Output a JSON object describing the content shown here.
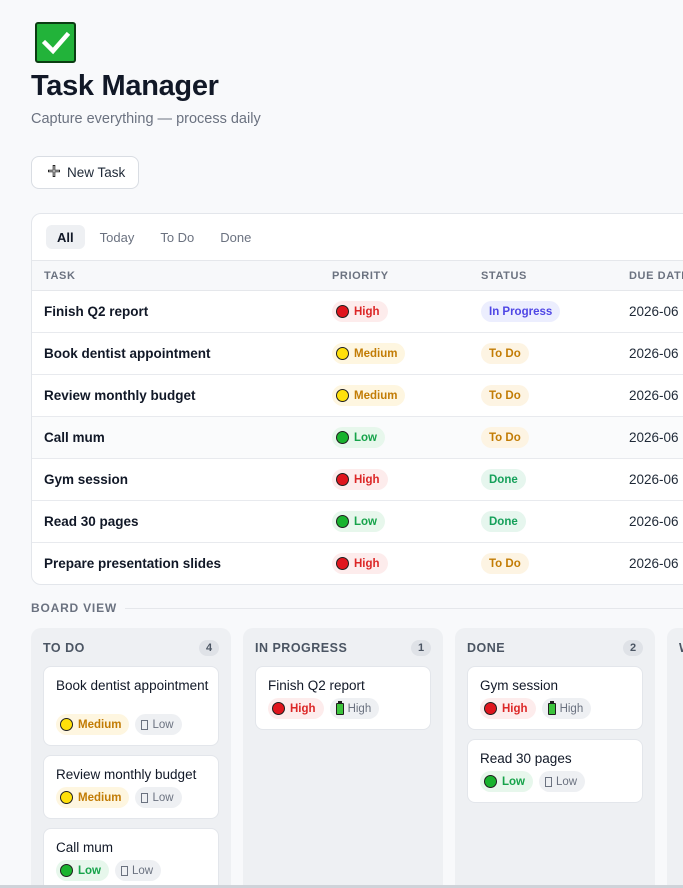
{
  "header": {
    "title": "Task Manager",
    "subtitle": "Capture everything — process daily",
    "icon": "check-mark-icon",
    "icon_color": "#22b33a"
  },
  "toolbar": {
    "new_task_label": "New Task",
    "new_task_icon": "plus-icon"
  },
  "filters": [
    {
      "label": "All",
      "active": true
    },
    {
      "label": "Today",
      "active": false
    },
    {
      "label": "To Do",
      "active": false
    },
    {
      "label": "Done",
      "active": false
    }
  ],
  "table": {
    "columns": [
      "Task",
      "Priority",
      "Status",
      "Due Date"
    ],
    "rows": [
      {
        "task": "Finish Q2 report",
        "priority": "High",
        "status": "In Progress",
        "due": "2026-06"
      },
      {
        "task": "Book dentist appointment",
        "priority": "Medium",
        "status": "To Do",
        "due": "2026-06"
      },
      {
        "task": "Review monthly budget",
        "priority": "Medium",
        "status": "To Do",
        "due": "2026-06"
      },
      {
        "task": "Call mum",
        "priority": "Low",
        "status": "To Do",
        "due": "2026-06"
      },
      {
        "task": "Gym session",
        "priority": "High",
        "status": "Done",
        "due": "2026-06"
      },
      {
        "task": "Read 30 pages",
        "priority": "Low",
        "status": "Done",
        "due": "2026-06"
      },
      {
        "task": "Prepare presentation slides",
        "priority": "High",
        "status": "To Do",
        "due": "2026-06"
      }
    ]
  },
  "board": {
    "label": "BOARD VIEW",
    "columns": [
      {
        "title": "TO DO",
        "count": "4",
        "cards": [
          {
            "title": "Book dentist appointment",
            "priority": "Medium",
            "energy": "Low"
          },
          {
            "title": "Review monthly budget",
            "priority": "Medium",
            "energy": "Low"
          },
          {
            "title": "Call mum",
            "priority": "Low",
            "energy": "Low"
          }
        ]
      },
      {
        "title": "IN PROGRESS",
        "count": "1",
        "cards": [
          {
            "title": "Finish Q2 report",
            "priority": "High",
            "energy": "High"
          }
        ]
      },
      {
        "title": "DONE",
        "count": "2",
        "cards": [
          {
            "title": "Gym session",
            "priority": "High",
            "energy": "High"
          },
          {
            "title": "Read 30 pages",
            "priority": "Low",
            "energy": "Low"
          }
        ]
      }
    ],
    "peek_column_initial": "W"
  },
  "colors": {
    "high": "#dc2626",
    "medium": "#c27c05",
    "low": "#16a34a",
    "in_progress": "#4f46e5",
    "done": "#15a05a"
  }
}
